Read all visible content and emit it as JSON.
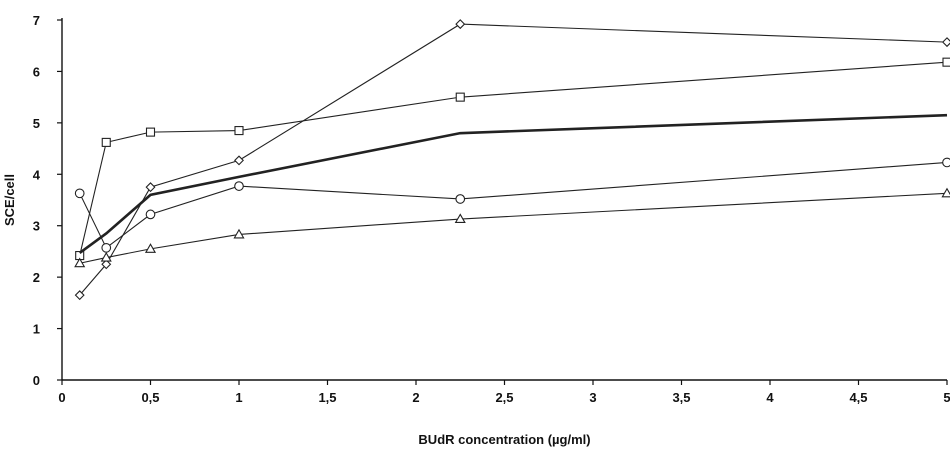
{
  "chart_data": {
    "type": "line",
    "title": "",
    "xlabel": "BUdR concentration (µg/ml)",
    "ylabel": "SCE/cell",
    "xlim": [
      0,
      5
    ],
    "ylim": [
      0,
      7
    ],
    "xticks": [
      0,
      0.5,
      1,
      1.5,
      2,
      2.5,
      3,
      3.5,
      4,
      4.5,
      5
    ],
    "xtick_labels": [
      "0",
      "0,5",
      "1",
      "1,5",
      "2",
      "2,5",
      "3",
      "3,5",
      "4",
      "4,5",
      "5"
    ],
    "yticks": [
      0,
      1,
      2,
      3,
      4,
      5,
      6,
      7
    ],
    "ytick_labels": [
      "0",
      "1",
      "2",
      "3",
      "4",
      "5",
      "6",
      "7"
    ],
    "grid": false,
    "legend": "none",
    "series": [
      {
        "marker": "diamond",
        "x": [
          0.1,
          0.25,
          0.5,
          1,
          2.25,
          5
        ],
        "y": [
          1.65,
          2.25,
          3.75,
          4.27,
          6.92,
          6.57
        ]
      },
      {
        "marker": "square",
        "x": [
          0.1,
          0.25,
          0.5,
          1,
          2.25,
          5
        ],
        "y": [
          2.42,
          4.62,
          4.82,
          4.85,
          5.5,
          6.18
        ]
      },
      {
        "marker": "none",
        "bold": true,
        "x": [
          0.1,
          0.25,
          0.5,
          1,
          2.25,
          5
        ],
        "y": [
          2.47,
          2.85,
          3.6,
          3.95,
          4.8,
          5.15
        ]
      },
      {
        "marker": "circle",
        "x": [
          0.1,
          0.25,
          0.5,
          1,
          2.25,
          5
        ],
        "y": [
          3.63,
          2.57,
          3.22,
          3.77,
          3.52,
          4.23
        ]
      },
      {
        "marker": "triangle",
        "x": [
          0.1,
          0.25,
          0.5,
          1,
          2.25,
          5
        ],
        "y": [
          2.27,
          2.38,
          2.55,
          2.83,
          3.13,
          3.63
        ]
      }
    ]
  }
}
